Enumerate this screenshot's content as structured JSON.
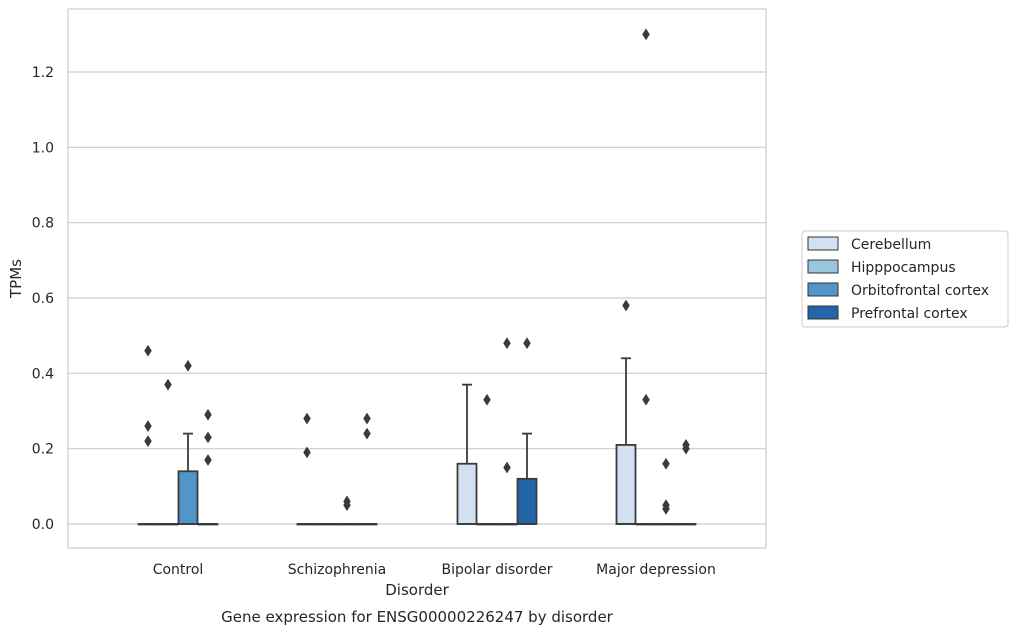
{
  "chart_data": {
    "type": "box",
    "title": "Gene expression for ENSG00000226247 by disorder",
    "xlabel": "Disorder",
    "ylabel": "TPMs",
    "ylim": [
      -0.065,
      1.37
    ],
    "yticks": [
      "0.0",
      "0.2",
      "0.4",
      "0.6",
      "0.8",
      "1.0",
      "1.2"
    ],
    "ytick_values": [
      0.0,
      0.2,
      0.4,
      0.6,
      0.8,
      1.0,
      1.2
    ],
    "grid": true,
    "legend_position": "right",
    "categories": [
      "Control",
      "Schizophrenia",
      "Bipolar disorder",
      "Major depression"
    ],
    "series": [
      {
        "name": "Cerebellum",
        "color": "#d2e1f1",
        "boxes": [
          {
            "q1": 0,
            "median": 0,
            "q3": 0,
            "whislo": 0,
            "whishi": 0,
            "fliers": [
              0.46,
              0.26,
              0.22
            ]
          },
          {
            "q1": 0,
            "median": 0,
            "q3": 0,
            "whislo": 0,
            "whishi": 0,
            "fliers": [
              0.28,
              0.19
            ]
          },
          {
            "q1": 0,
            "median": 0,
            "q3": 0.16,
            "whislo": 0,
            "whishi": 0.37,
            "fliers": []
          },
          {
            "q1": 0,
            "median": 0,
            "q3": 0.21,
            "whislo": 0,
            "whishi": 0.44,
            "fliers": [
              0.58
            ]
          }
        ]
      },
      {
        "name": "Hipppocampus",
        "color": "#9ac6df",
        "boxes": [
          {
            "q1": 0,
            "median": 0,
            "q3": 0,
            "whislo": 0,
            "whishi": 0,
            "fliers": [
              0.37
            ]
          },
          {
            "q1": 0,
            "median": 0,
            "q3": 0,
            "whislo": 0,
            "whishi": 0,
            "fliers": []
          },
          {
            "q1": 0,
            "median": 0,
            "q3": 0,
            "whislo": 0,
            "whishi": 0,
            "fliers": [
              0.33
            ]
          },
          {
            "q1": 0,
            "median": 0,
            "q3": 0,
            "whislo": 0,
            "whishi": 0,
            "fliers": [
              1.3,
              0.33
            ]
          }
        ]
      },
      {
        "name": "Orbitofrontal cortex",
        "color": "#5296c9",
        "boxes": [
          {
            "q1": 0,
            "median": 0,
            "q3": 0.14,
            "whislo": 0,
            "whishi": 0.24,
            "fliers": [
              0.42
            ]
          },
          {
            "q1": 0,
            "median": 0,
            "q3": 0,
            "whislo": 0,
            "whishi": 0,
            "fliers": [
              0.06,
              0.05
            ]
          },
          {
            "q1": 0,
            "median": 0,
            "q3": 0,
            "whislo": 0,
            "whishi": 0,
            "fliers": [
              0.48,
              0.15
            ]
          },
          {
            "q1": 0,
            "median": 0,
            "q3": 0,
            "whislo": 0,
            "whishi": 0,
            "fliers": [
              0.16,
              0.05,
              0.04
            ]
          }
        ]
      },
      {
        "name": "Prefrontal cortex",
        "color": "#2366a8",
        "boxes": [
          {
            "q1": 0,
            "median": 0,
            "q3": 0,
            "whislo": 0,
            "whishi": 0,
            "fliers": [
              0.29,
              0.23,
              0.17
            ]
          },
          {
            "q1": 0,
            "median": 0,
            "q3": 0,
            "whislo": 0,
            "whishi": 0,
            "fliers": [
              0.28,
              0.24
            ]
          },
          {
            "q1": 0,
            "median": 0,
            "q3": 0.12,
            "whislo": 0,
            "whishi": 0.24,
            "fliers": [
              0.48
            ]
          },
          {
            "q1": 0,
            "median": 0,
            "q3": 0,
            "whislo": 0,
            "whishi": 0,
            "fliers": [
              0.21,
              0.2
            ]
          }
        ]
      }
    ]
  }
}
